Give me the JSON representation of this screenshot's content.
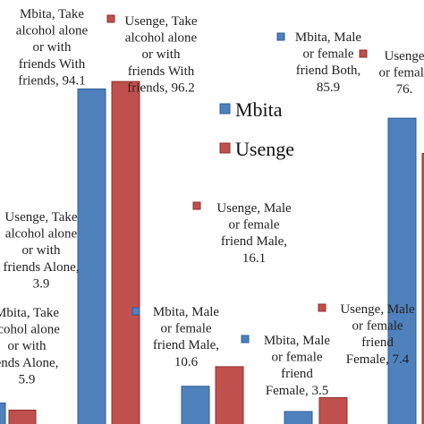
{
  "chart_data": {
    "type": "bar",
    "ylim": [
      0,
      100
    ],
    "legend_position": "center",
    "series": [
      {
        "name": "Mbita",
        "color": "#4f81bd",
        "edge": "#2c5d99"
      },
      {
        "name": "Usenge",
        "color": "#c0504d",
        "edge": "#8e2f2c"
      }
    ],
    "bars": [
      {
        "id": "m-alone",
        "series": 0,
        "value": 5.9
      },
      {
        "id": "u-alone",
        "series": 1,
        "value": 3.9
      },
      {
        "id": "m-with",
        "series": 0,
        "value": 94.1
      },
      {
        "id": "u-with",
        "series": 1,
        "value": 96.2
      },
      {
        "id": "m-male",
        "series": 0,
        "value": 10.6
      },
      {
        "id": "u-male",
        "series": 1,
        "value": 16.1
      },
      {
        "id": "m-female",
        "series": 0,
        "value": 3.5
      },
      {
        "id": "u-female",
        "series": 1,
        "value": 7.4
      },
      {
        "id": "m-both",
        "series": 0,
        "value": 85.9
      },
      {
        "id": "u-both",
        "series": 1,
        "value": 76.0
      }
    ],
    "data_labels": [
      {
        "id": "lbl-m-with",
        "series": 0,
        "lines": [
          "Mbita, Take",
          "alcohol alone",
          "or with",
          "friends With",
          "friends, 94.1"
        ]
      },
      {
        "id": "lbl-u-with",
        "series": 1,
        "lines": [
          "Usenge, Take",
          "alcohol alone",
          "or with",
          "friends With",
          "friends, 96.2"
        ]
      },
      {
        "id": "lbl-m-both",
        "series": 0,
        "lines": [
          "Mbita, Male",
          "or female",
          "friend Both,",
          "85.9"
        ]
      },
      {
        "id": "lbl-u-both",
        "series": 1,
        "lines": [
          "Usenge",
          "or female",
          "76."
        ]
      },
      {
        "id": "lbl-u-male",
        "series": 1,
        "lines": [
          "Usenge, Male",
          "or female",
          "friend Male,",
          "16.1"
        ]
      },
      {
        "id": "lbl-u-alone",
        "series": 1,
        "lines": [
          "Usenge, Take",
          "alcohol alone",
          "or with",
          "friends Alone,",
          "3.9"
        ]
      },
      {
        "id": "lbl-m-male",
        "series": 0,
        "lines": [
          "Mbita, Male",
          "or female",
          "friend Male,",
          "10.6"
        ]
      },
      {
        "id": "lbl-u-female",
        "series": 1,
        "lines": [
          "Usenge, Male",
          "or female",
          "friend",
          "Female, 7.4"
        ]
      },
      {
        "id": "lbl-m-alone",
        "series": 0,
        "lines": [
          "Mbita, Take",
          "lcohol alone",
          "or with",
          "ends Alone,",
          "5.9"
        ]
      },
      {
        "id": "lbl-m-female",
        "series": 0,
        "lines": [
          "Mbita, Male",
          "or female",
          "friend",
          "Female, 3.5"
        ]
      }
    ]
  }
}
